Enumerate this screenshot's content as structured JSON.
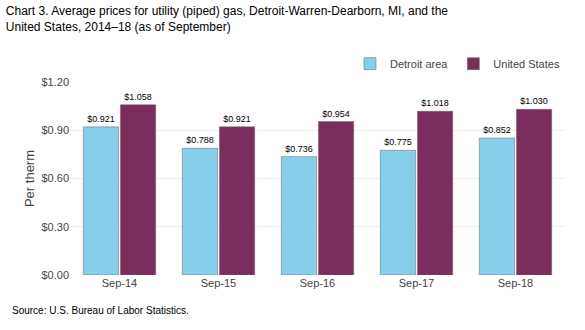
{
  "chart_data": {
    "type": "bar",
    "title": "Chart 3. Average prices for utility (piped) gas, Detroit-Warren-Dearborn, MI, and the",
    "subtitle": "United States, 2014–18 (as of September)",
    "y_label": "Per therm",
    "annotations": [
      "Source: U.S. Bureau of Labor Statistics."
    ],
    "categories": [
      "Sep-14",
      "Sep-15",
      "Sep-16",
      "Sep-17",
      "Sep-18"
    ],
    "series": [
      {
        "name": "Detroit area",
        "color": "#87CEEB",
        "values": [
          0.921,
          0.788,
          0.736,
          0.775,
          0.852
        ],
        "value_labels": [
          "$0.921",
          "$0.788",
          "$0.736",
          "$0.775",
          "$0.852"
        ]
      },
      {
        "name": "United States",
        "color": "#7B2D5E",
        "values": [
          1.058,
          0.921,
          0.954,
          1.018,
          1.03
        ],
        "value_labels": [
          "$1.058",
          "$0.921",
          "$0.954",
          "$1.018",
          "$1.030"
        ]
      }
    ],
    "ylim": [
      0.0,
      1.2
    ],
    "yticks": [
      {
        "value": 0.0,
        "label": "$0.00"
      },
      {
        "value": 0.3,
        "label": "$0.30"
      },
      {
        "value": 0.6,
        "label": "$0.60"
      },
      {
        "value": 0.9,
        "label": "$0.90"
      },
      {
        "value": 1.2,
        "label": "$1.20"
      }
    ],
    "grid": true,
    "legend": "upper right",
    "data_labels": true
  }
}
